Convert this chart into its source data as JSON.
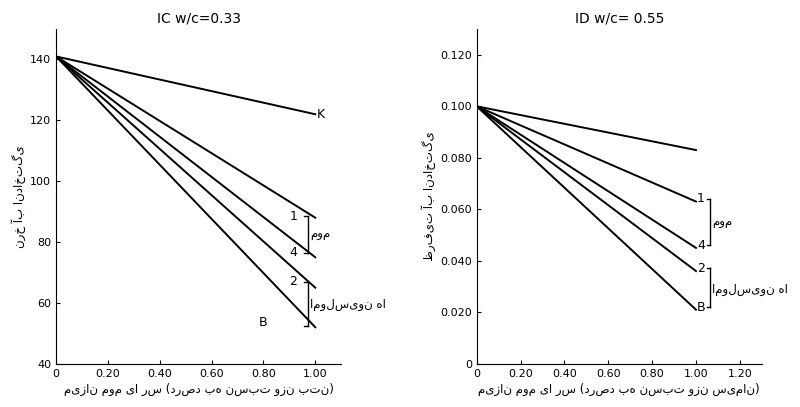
{
  "left_title": "IC w/c=0.33",
  "right_title": "ID w/c= 0.55",
  "left_xlabel": "میزان موم یا رس (درصد به نسبت وزن بتن)",
  "right_xlabel": "میزان موم یا رس (درصد به نسبت وزن سیمان)",
  "left_ylabel": "نرخ آب انداختگی",
  "right_ylabel": "ظرفیت آب انداختگی",
  "left_xlim": [
    0,
    1.1
  ],
  "left_ylim": [
    40,
    150
  ],
  "right_xlim": [
    0,
    1.3
  ],
  "right_ylim": [
    0.0,
    0.13
  ],
  "left_xticks": [
    0,
    0.2,
    0.4,
    0.6,
    0.8,
    1.0
  ],
  "right_xticks": [
    0,
    0.2,
    0.4,
    0.6,
    0.8,
    1.0,
    1.2
  ],
  "left_yticks": [
    40,
    60,
    80,
    100,
    120,
    140
  ],
  "right_yticks": [
    0.0,
    0.02,
    0.04,
    0.06,
    0.08,
    0.1,
    0.12
  ],
  "left_curves": {
    "K": {
      "x": [
        0,
        1.0
      ],
      "y": [
        141,
        122
      ]
    },
    "1": {
      "x": [
        0,
        1.0
      ],
      "y": [
        141,
        88
      ]
    },
    "4": {
      "x": [
        0,
        1.0
      ],
      "y": [
        141,
        75
      ]
    },
    "2": {
      "x": [
        0,
        1.0
      ],
      "y": [
        141,
        65
      ]
    },
    "B": {
      "x": [
        0,
        1.0
      ],
      "y": [
        141,
        52
      ]
    }
  },
  "right_curves": {
    "K": {
      "x": [
        0,
        1.0
      ],
      "y": [
        0.1,
        0.083
      ]
    },
    "1": {
      "x": [
        0,
        1.0
      ],
      "y": [
        0.1,
        0.063
      ]
    },
    "4": {
      "x": [
        0,
        1.0
      ],
      "y": [
        0.1,
        0.045
      ]
    },
    "2": {
      "x": [
        0,
        1.0
      ],
      "y": [
        0.1,
        0.036
      ]
    },
    "B": {
      "x": [
        0,
        1.0
      ],
      "y": [
        0.1,
        0.021
      ]
    }
  },
  "wax_label": "موم",
  "emulsion_label": "امولسیون ها",
  "background_color": "#ffffff",
  "line_color": "#000000"
}
